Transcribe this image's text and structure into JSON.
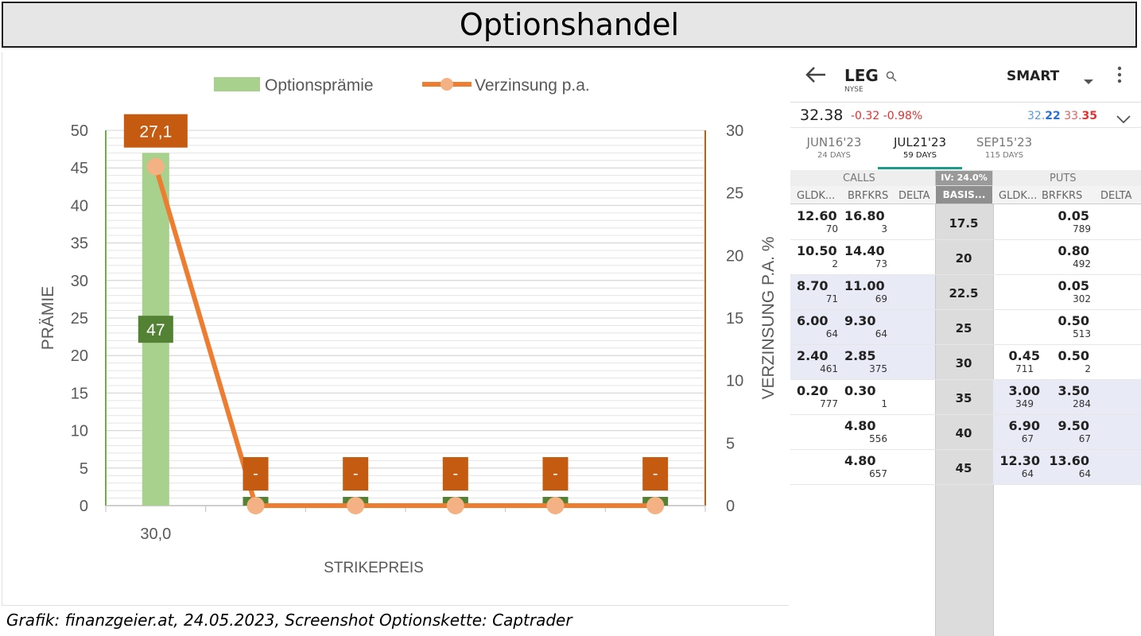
{
  "banner": {
    "title": "Optionshandel"
  },
  "source": "Grafik: finanzgeier.at, 24.05.2023, Screenshot Optionskette: Captrader",
  "chart_data": {
    "type": "bar+line",
    "legend": [
      "Optionsprämie",
      "Verzinsung p.a."
    ],
    "legend_position": "top",
    "xlabel": "STRIKEPREIS",
    "ylabel": "PRÄMIE",
    "y2label": "VERZINSUNG P.A. %",
    "ylim": [
      0,
      50
    ],
    "y2lim": [
      0,
      30
    ],
    "yticks": [
      0,
      5,
      10,
      15,
      20,
      25,
      30,
      35,
      40,
      45,
      50
    ],
    "y2ticks": [
      0,
      5,
      10,
      15,
      20,
      25,
      30
    ],
    "categories": [
      "30,0",
      "",
      "",
      "",
      "",
      ""
    ],
    "series": [
      {
        "name": "Optionsprämie",
        "type": "bar",
        "axis": "left",
        "values": [
          47,
          0,
          0,
          0,
          0,
          0
        ],
        "data_labels": [
          "47",
          "",
          "",
          "",
          "",
          ""
        ],
        "color": "#a9d18e"
      },
      {
        "name": "Verzinsung p.a.",
        "type": "line",
        "axis": "right",
        "values": [
          27.1,
          0,
          0,
          0,
          0,
          0
        ],
        "data_labels": [
          "27,1",
          "-",
          "-",
          "-",
          "-",
          "-"
        ],
        "color": "#ed7d31"
      }
    ],
    "grid": true
  },
  "chain": {
    "back_icon": "arrow-left-icon",
    "symbol": "LEG",
    "exchange": "NYSE",
    "search_icon": "search-icon",
    "route": "SMART",
    "price": "32.38",
    "change": "-0.32",
    "change_pct": "-0.98%",
    "bid_prefix": "32.",
    "bid_suffix": "22",
    "ask_prefix": "33.",
    "ask_suffix": "35",
    "tabs": [
      {
        "label": "JUN16'23",
        "days": "24 DAYS"
      },
      {
        "label": "JUL21'23",
        "days": "59 DAYS"
      },
      {
        "label": "SEP15'23",
        "days": "115 DAYS"
      }
    ],
    "calls_label": "CALLS",
    "puts_label": "PUTS",
    "iv_label": "IV: 24.0%",
    "basis_label": "BASIS...",
    "col_bid": "GLDK...",
    "col_ask": "BRFKRS",
    "col_delta": "DELTA",
    "rows": [
      {
        "strike": "17.5",
        "c_bid": "12.60",
        "c_bid_sz": "70",
        "c_ask": "16.80",
        "c_ask_sz": "3",
        "p_bid": "",
        "p_bid_sz": "",
        "p_ask": "0.05",
        "p_ask_sz": "789"
      },
      {
        "strike": "20",
        "c_bid": "10.50",
        "c_bid_sz": "2",
        "c_ask": "14.40",
        "c_ask_sz": "73",
        "p_bid": "",
        "p_bid_sz": "",
        "p_ask": "0.80",
        "p_ask_sz": "492"
      },
      {
        "strike": "22.5",
        "c_bid": "8.70",
        "c_bid_sz": "71",
        "c_ask": "11.00",
        "c_ask_sz": "69",
        "p_bid": "",
        "p_bid_sz": "",
        "p_ask": "0.05",
        "p_ask_sz": "302"
      },
      {
        "strike": "25",
        "c_bid": "6.00",
        "c_bid_sz": "64",
        "c_ask": "9.30",
        "c_ask_sz": "64",
        "p_bid": "",
        "p_bid_sz": "",
        "p_ask": "0.50",
        "p_ask_sz": "513"
      },
      {
        "strike": "30",
        "c_bid": "2.40",
        "c_bid_sz": "461",
        "c_ask": "2.85",
        "c_ask_sz": "375",
        "p_bid": "0.45",
        "p_bid_sz": "711",
        "p_ask": "0.50",
        "p_ask_sz": "2"
      },
      {
        "strike": "35",
        "c_bid": "0.20",
        "c_bid_sz": "777",
        "c_ask": "0.30",
        "c_ask_sz": "1",
        "p_bid": "3.00",
        "p_bid_sz": "349",
        "p_ask": "3.50",
        "p_ask_sz": "284"
      },
      {
        "strike": "40",
        "c_bid": "",
        "c_bid_sz": "",
        "c_ask": "4.80",
        "c_ask_sz": "556",
        "p_bid": "6.90",
        "p_bid_sz": "67",
        "p_ask": "9.50",
        "p_ask_sz": "67"
      },
      {
        "strike": "45",
        "c_bid": "",
        "c_bid_sz": "",
        "c_ask": "4.80",
        "c_ask_sz": "657",
        "p_bid": "12.30",
        "p_bid_sz": "64",
        "p_ask": "13.60",
        "p_ask_sz": "64"
      }
    ]
  }
}
